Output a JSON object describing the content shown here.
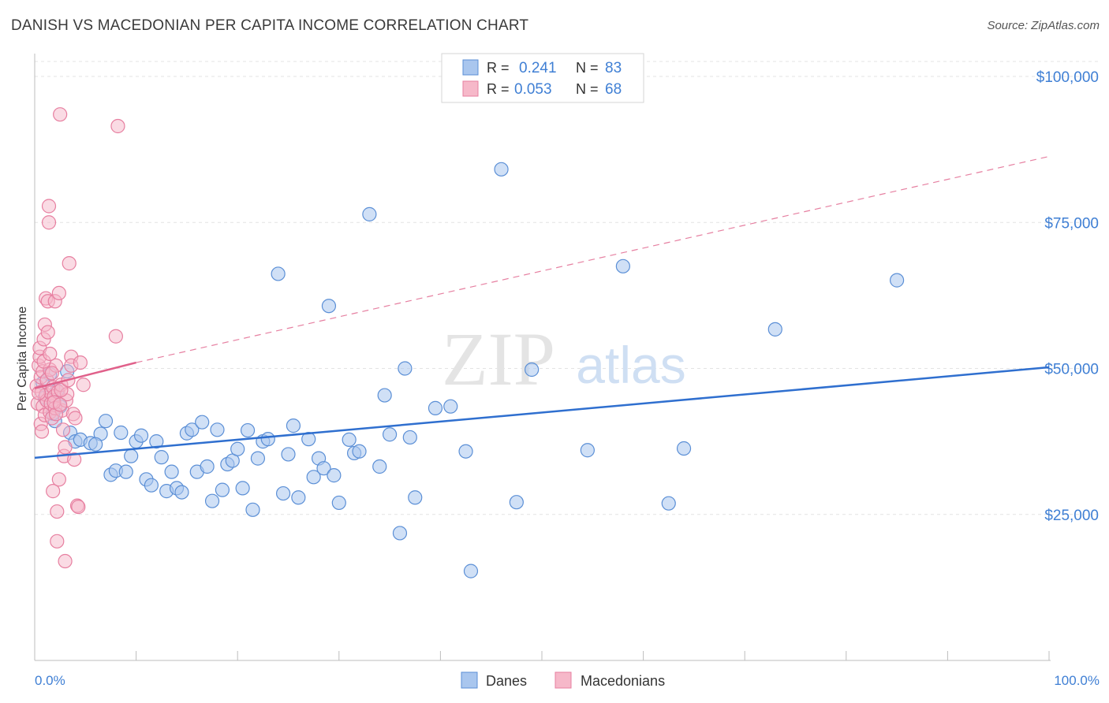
{
  "header": {
    "title": "DANISH VS MACEDONIAN PER CAPITA INCOME CORRELATION CHART",
    "source": "Source: ZipAtlas.com"
  },
  "watermark": {
    "zip": "ZIP",
    "atlas": "atlas"
  },
  "colors": {
    "danes_fill": "#a9c6ee",
    "danes_stroke": "#5b8fd6",
    "danes_line": "#2f6fcf",
    "mac_fill": "#f6b8c9",
    "mac_stroke": "#e77fa0",
    "mac_line": "#e0608a",
    "tick_text": "#3f7fd4",
    "grid": "#e3e3e3"
  },
  "legend_top": {
    "rows": [
      {
        "r_label": "R =",
        "r_value": "0.241",
        "n_label": "N =",
        "n_value": "83"
      },
      {
        "r_label": "R =",
        "r_value": "0.053",
        "n_label": "N =",
        "n_value": "68"
      }
    ]
  },
  "legend_bottom": {
    "danes": "Danes",
    "macedonians": "Macedonians"
  },
  "chart_data": {
    "type": "scatter",
    "xlabel": "",
    "ylabel": "Per Capita Income",
    "xlim": [
      0,
      100
    ],
    "ylim": [
      0,
      105000
    ],
    "x_tick_labels": [
      "0.0%",
      "100.0%"
    ],
    "y_ticks": [
      25000,
      50000,
      75000,
      100000
    ],
    "y_tick_labels": [
      "$25,000",
      "$50,000",
      "$75,000",
      "$100,000"
    ],
    "grid": true,
    "legend_position": "top-center",
    "series": [
      {
        "name": "Danes",
        "r": 0.241,
        "n": 83,
        "trend": {
          "x": [
            0,
            100
          ],
          "y": [
            34700,
            50200
          ],
          "style": "solid"
        },
        "points": [
          [
            1.5,
            49000
          ],
          [
            2.0,
            41000
          ],
          [
            2.5,
            43500
          ],
          [
            3.5,
            39000
          ],
          [
            4.0,
            37500
          ],
          [
            4.5,
            37800
          ],
          [
            5.5,
            37200
          ],
          [
            6.5,
            38800
          ],
          [
            7.0,
            41000
          ],
          [
            7.5,
            31800
          ],
          [
            8.0,
            32500
          ],
          [
            8.5,
            39000
          ],
          [
            9.0,
            32300
          ],
          [
            9.5,
            35000
          ],
          [
            10.0,
            37500
          ],
          [
            10.5,
            38500
          ],
          [
            11.0,
            31000
          ],
          [
            11.5,
            30000
          ],
          [
            12.0,
            37500
          ],
          [
            12.5,
            34800
          ],
          [
            13.0,
            29000
          ],
          [
            13.5,
            32300
          ],
          [
            14.0,
            29500
          ],
          [
            14.5,
            28800
          ],
          [
            15.0,
            38900
          ],
          [
            15.5,
            39500
          ],
          [
            16.0,
            32300
          ],
          [
            16.5,
            40800
          ],
          [
            17.0,
            33200
          ],
          [
            17.5,
            27300
          ],
          [
            18.0,
            39500
          ],
          [
            18.5,
            29200
          ],
          [
            19.0,
            33600
          ],
          [
            19.5,
            34200
          ],
          [
            20.0,
            36200
          ],
          [
            20.5,
            29500
          ],
          [
            21.0,
            39400
          ],
          [
            21.5,
            25800
          ],
          [
            22.0,
            34600
          ],
          [
            22.5,
            37500
          ],
          [
            23.0,
            37900
          ],
          [
            24.0,
            66200
          ],
          [
            24.5,
            28600
          ],
          [
            25.0,
            35300
          ],
          [
            25.5,
            40200
          ],
          [
            26.0,
            27900
          ],
          [
            27.0,
            37900
          ],
          [
            27.5,
            31400
          ],
          [
            28.0,
            34600
          ],
          [
            28.5,
            32900
          ],
          [
            29.0,
            60700
          ],
          [
            29.5,
            31700
          ],
          [
            30.0,
            27000
          ],
          [
            31.0,
            37800
          ],
          [
            31.5,
            35500
          ],
          [
            32.0,
            35800
          ],
          [
            33.0,
            76400
          ],
          [
            34.0,
            33200
          ],
          [
            34.5,
            45400
          ],
          [
            35.0,
            38700
          ],
          [
            36.0,
            21800
          ],
          [
            36.5,
            50000
          ],
          [
            37.0,
            38200
          ],
          [
            37.5,
            27900
          ],
          [
            39.5,
            43200
          ],
          [
            41.0,
            43500
          ],
          [
            42.5,
            35800
          ],
          [
            43.0,
            15300
          ],
          [
            46.0,
            84100
          ],
          [
            47.5,
            27100
          ],
          [
            49.0,
            49800
          ],
          [
            54.5,
            36000
          ],
          [
            58.0,
            67500
          ],
          [
            62.5,
            26900
          ],
          [
            64.0,
            36300
          ],
          [
            73.0,
            56700
          ],
          [
            85.0,
            65100
          ],
          [
            3.2,
            49500
          ],
          [
            6.0,
            37000
          ],
          [
            2.2,
            46200
          ],
          [
            1.0,
            45000
          ],
          [
            0.8,
            47500
          ],
          [
            1.8,
            42300
          ]
        ]
      },
      {
        "name": "Macedonians",
        "r": 0.053,
        "n": 68,
        "trend": {
          "x": [
            0,
            10
          ],
          "y": [
            46600,
            51000
          ],
          "dash_to": [
            100,
            86300
          ],
          "style": "solid-then-dashed"
        },
        "points": [
          [
            0.2,
            47000
          ],
          [
            0.3,
            44000
          ],
          [
            0.4,
            50500
          ],
          [
            0.5,
            52000
          ],
          [
            0.5,
            53500
          ],
          [
            0.6,
            48500
          ],
          [
            0.6,
            40500
          ],
          [
            0.7,
            46000
          ],
          [
            0.8,
            49500
          ],
          [
            0.8,
            43500
          ],
          [
            0.9,
            55000
          ],
          [
            1.0,
            42000
          ],
          [
            1.0,
            57500
          ],
          [
            1.1,
            45500
          ],
          [
            1.1,
            62000
          ],
          [
            1.2,
            48000
          ],
          [
            1.2,
            44500
          ],
          [
            1.3,
            61500
          ],
          [
            1.3,
            56200
          ],
          [
            1.4,
            77800
          ],
          [
            1.4,
            75000
          ],
          [
            1.5,
            49800
          ],
          [
            1.5,
            42500
          ],
          [
            1.6,
            45800
          ],
          [
            1.6,
            44000
          ],
          [
            1.7,
            41500
          ],
          [
            1.8,
            46800
          ],
          [
            1.8,
            29000
          ],
          [
            1.9,
            45200
          ],
          [
            2.0,
            61500
          ],
          [
            2.0,
            43200
          ],
          [
            2.1,
            50500
          ],
          [
            2.2,
            25500
          ],
          [
            2.2,
            20400
          ],
          [
            2.3,
            46000
          ],
          [
            2.4,
            31000
          ],
          [
            2.4,
            62900
          ],
          [
            2.5,
            93500
          ],
          [
            2.6,
            47200
          ],
          [
            2.7,
            42800
          ],
          [
            2.8,
            39500
          ],
          [
            2.9,
            35000
          ],
          [
            3.0,
            36500
          ],
          [
            3.0,
            17000
          ],
          [
            3.1,
            44500
          ],
          [
            3.2,
            45600
          ],
          [
            3.4,
            68000
          ],
          [
            3.6,
            52000
          ],
          [
            3.6,
            50500
          ],
          [
            3.8,
            42200
          ],
          [
            3.9,
            34400
          ],
          [
            4.0,
            41500
          ],
          [
            4.2,
            26500
          ],
          [
            4.3,
            26300
          ],
          [
            4.5,
            51000
          ],
          [
            4.8,
            47200
          ],
          [
            1.7,
            49200
          ],
          [
            0.9,
            51200
          ],
          [
            2.6,
            46300
          ],
          [
            3.3,
            48000
          ],
          [
            0.4,
            45800
          ],
          [
            1.5,
            52500
          ],
          [
            8.2,
            91500
          ],
          [
            8.0,
            55500
          ],
          [
            2.1,
            42200
          ],
          [
            1.9,
            44200
          ],
          [
            0.7,
            39200
          ],
          [
            2.5,
            43800
          ]
        ]
      }
    ]
  }
}
